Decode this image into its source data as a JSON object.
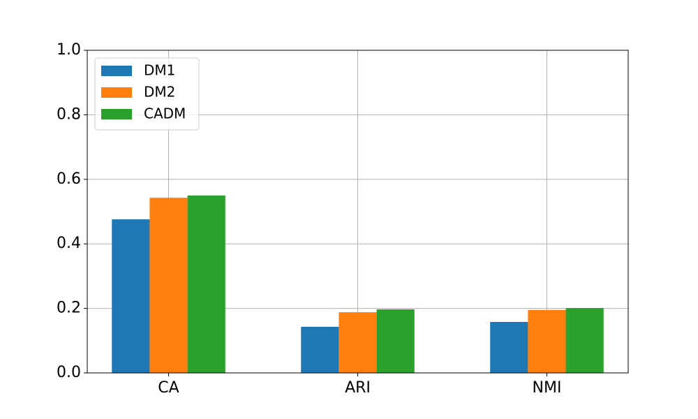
{
  "chart_data": {
    "type": "bar",
    "categories": [
      "CA",
      "ARI",
      "NMI"
    ],
    "series": [
      {
        "name": "DM1",
        "color": "#1f77b4",
        "values": [
          0.476,
          0.143,
          0.158
        ]
      },
      {
        "name": "DM2",
        "color": "#ff7f0e",
        "values": [
          0.543,
          0.188,
          0.195
        ]
      },
      {
        "name": "CADM",
        "color": "#2ca02c",
        "values": [
          0.55,
          0.197,
          0.201
        ]
      }
    ],
    "ylim": [
      0,
      1
    ],
    "yticks": [
      {
        "value": 0,
        "label": "0.0"
      },
      0.2,
      0.4,
      0.6,
      0.8,
      {
        "value": 1,
        "label": "1.0"
      }
    ],
    "grid": true,
    "legend": "upper-left"
  }
}
